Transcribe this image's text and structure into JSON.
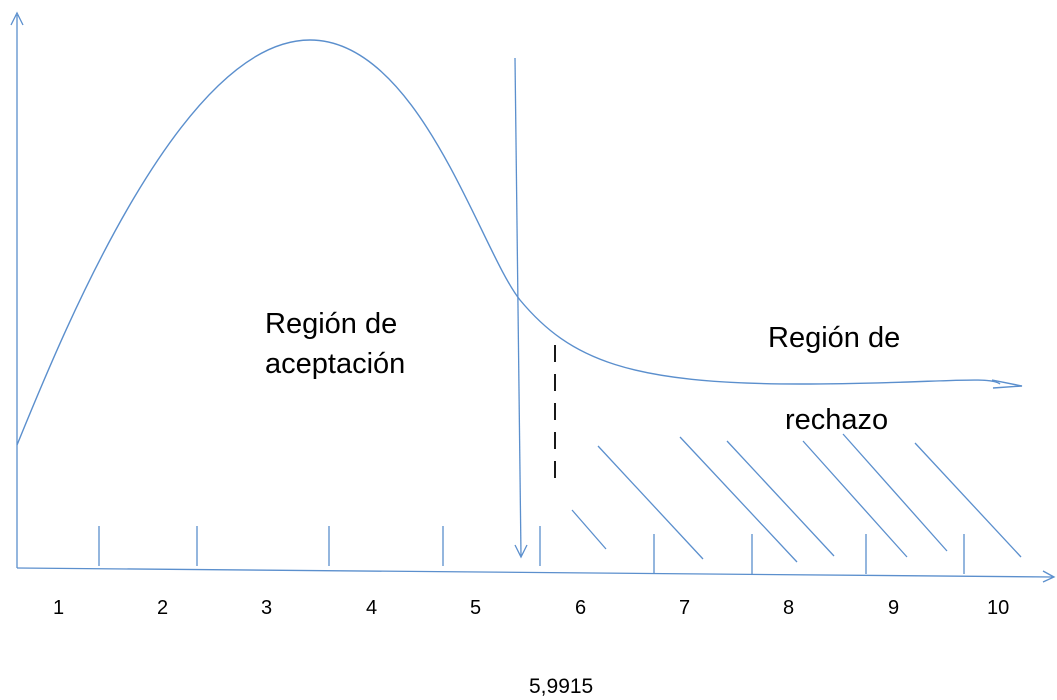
{
  "colors": {
    "line": "#5b8fcd",
    "text": "#000000",
    "dashed": "#000000",
    "background": "#ffffff"
  },
  "tick_labels": [
    "1",
    "2",
    "3",
    "4",
    "5",
    "6",
    "7",
    "8",
    "9",
    "10"
  ],
  "acceptance_region": {
    "line1": "Región de",
    "line2": "aceptación"
  },
  "rejection_region": {
    "line1": "Región de",
    "line2": "rechazo"
  },
  "critical_value": "5,9915"
}
